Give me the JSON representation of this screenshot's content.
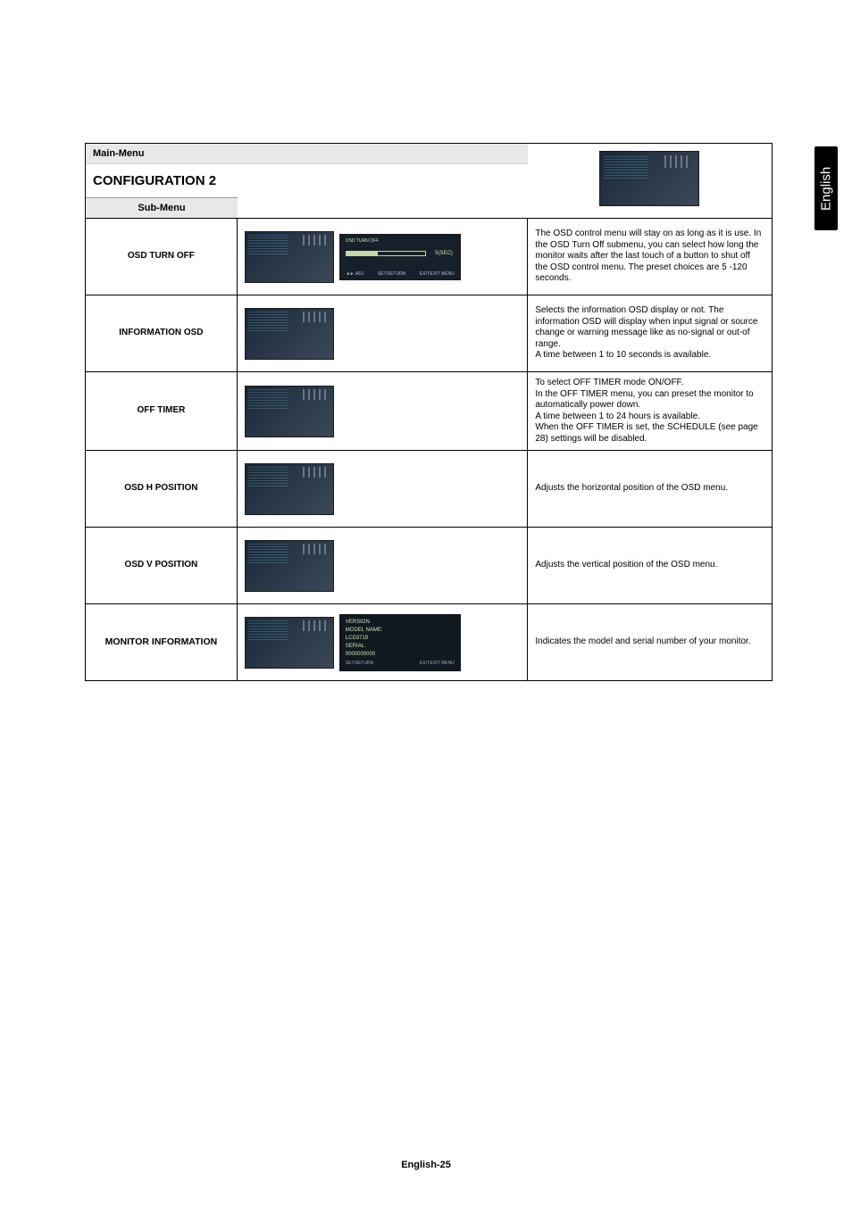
{
  "side_tab": "English",
  "page_footer": "English-25",
  "header": {
    "main_menu_label": "Main-Menu",
    "title": "CONFIGURATION 2",
    "sub_menu_label": "Sub-Menu"
  },
  "rows": [
    {
      "label": "OSD TURN OFF",
      "has_sub_osd": true,
      "sub_osd": {
        "title": "OSD TURN OFF",
        "value": "5(SEC)",
        "left_foot": "◄►:ADJ",
        "mid_foot": "SET:RETURN",
        "right_foot": "EXIT:EXIT MENU"
      },
      "description": "The OSD control menu will stay on as long as it is use.  In the OSD Turn Off submenu, you can select how long the monitor waits after the last touch of a button to shut off the OSD control menu. The preset choices are 5 -120 seconds."
    },
    {
      "label": "INFORMATION OSD",
      "has_sub_osd": false,
      "description": "Selects the information OSD display or not. The information OSD will display when input signal or source change or warning message like as no-signal or out-of range.\nA time between 1 to 10 seconds is available."
    },
    {
      "label": "OFF TIMER",
      "has_sub_osd": false,
      "description": "To select OFF TIMER mode ON/OFF.\nIn the OFF TIMER menu, you can preset the monitor to automatically power down.\nA time between 1 to 24 hours is available.\nWhen the OFF TIMER is set, the SCHEDULE (see page 28) settings will be disabled."
    },
    {
      "label": "OSD H POSITION",
      "has_sub_osd": false,
      "description": "Adjusts the horizontal position of the OSD menu."
    },
    {
      "label": "OSD V POSITION",
      "has_sub_osd": false,
      "description": "Adjusts the vertical position of the OSD menu."
    },
    {
      "label": "MONITOR INFORMATION",
      "label_font_size": "10.5px",
      "has_info_osd": true,
      "info_osd": {
        "l1": "VERSION",
        "l2": "MODEL NAME:",
        "l3": "LCD3719",
        "l4": "SERIAL:",
        "l5": "0000000000",
        "left_foot": "SET:RETURN",
        "right_foot": "EXIT:EXIT MENU"
      },
      "description": "Indicates the model and serial number of your monitor."
    }
  ],
  "styling": {
    "font_family": "Arial, Helvetica, sans-serif",
    "body_text_size": 10,
    "label_text_size": 12,
    "header_title_size": 15,
    "border_color": "#000000",
    "shade_bg": "#e8e8e8",
    "osd_bg_gradient": [
      "#1a2838",
      "#3a4858"
    ],
    "osd_text_color": "#d3e2b0",
    "side_tab_bg": "#000000",
    "side_tab_color": "#ffffff"
  }
}
